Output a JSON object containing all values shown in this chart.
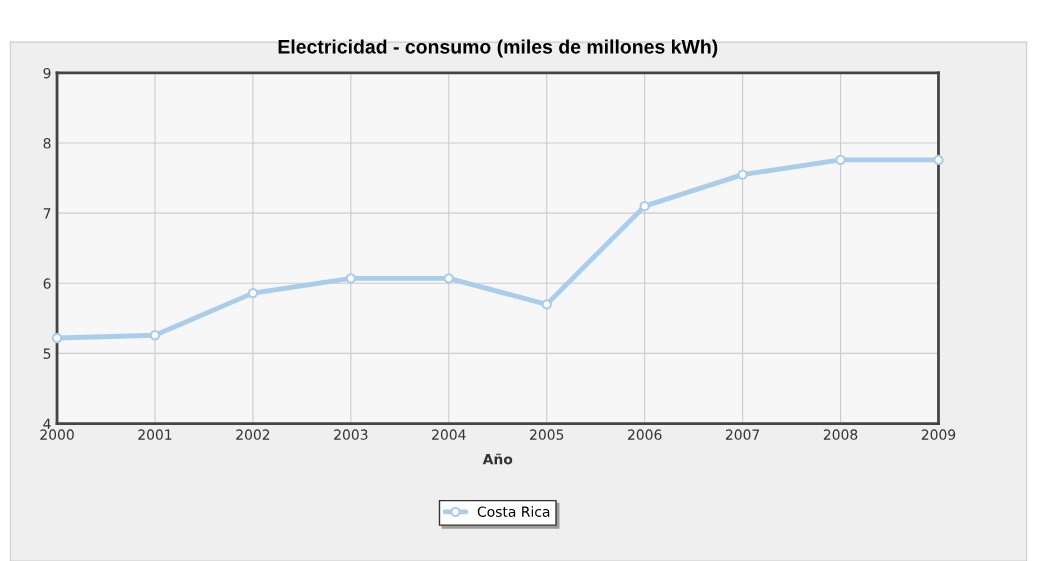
{
  "chart_data": {
    "type": "line",
    "title": "Electricidad - consumo (miles de millones kWh)",
    "xlabel": "Año",
    "x": [
      2000,
      2001,
      2002,
      2003,
      2004,
      2005,
      2006,
      2007,
      2008,
      2009
    ],
    "series": [
      {
        "name": "Costa Rica",
        "color": "#a9cdeb",
        "values": [
          5.22,
          5.26,
          5.86,
          6.07,
          6.07,
          5.7,
          7.1,
          7.55,
          7.76,
          7.76
        ]
      }
    ],
    "xlim": [
      2000,
      2009
    ],
    "xticks": [
      2000,
      2001,
      2002,
      2003,
      2004,
      2005,
      2006,
      2007,
      2008,
      2009
    ],
    "ylim": [
      4,
      9
    ],
    "yticks": [
      4,
      5,
      6,
      7,
      8,
      9
    ],
    "grid": true,
    "legend": "bottom",
    "marker": "circle",
    "line_style": "solid"
  }
}
